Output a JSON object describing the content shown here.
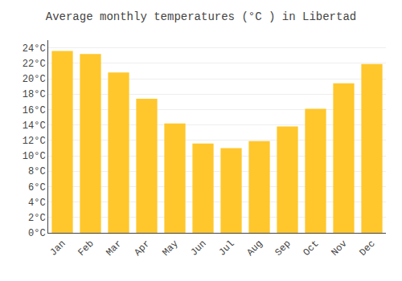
{
  "chart_data": {
    "type": "bar",
    "title": "Average monthly temperatures (°C ) in Libertad",
    "categories": [
      "Jan",
      "Feb",
      "Mar",
      "Apr",
      "May",
      "Jun",
      "Jul",
      "Aug",
      "Sep",
      "Oct",
      "Nov",
      "Dec"
    ],
    "values": [
      23.6,
      23.2,
      20.8,
      17.4,
      14.2,
      11.6,
      11.0,
      11.9,
      13.8,
      16.1,
      19.4,
      21.9
    ],
    "color": "#FFC72C",
    "ylim": [
      0,
      25
    ],
    "yticks": [
      {
        "value": 0,
        "label": "0°C"
      },
      {
        "value": 2,
        "label": "2°C"
      },
      {
        "value": 4,
        "label": "4°C"
      },
      {
        "value": 6,
        "label": "6°C"
      },
      {
        "value": 8,
        "label": "8°C"
      },
      {
        "value": 10,
        "label": "10°C"
      },
      {
        "value": 12,
        "label": "12°C"
      },
      {
        "value": 14,
        "label": "14°C"
      },
      {
        "value": 16,
        "label": "16°C"
      },
      {
        "value": 18,
        "label": "18°C"
      },
      {
        "value": 20,
        "label": "20°C"
      },
      {
        "value": 22,
        "label": "22°C"
      },
      {
        "value": 24,
        "label": "24°C"
      }
    ],
    "grid": true
  }
}
